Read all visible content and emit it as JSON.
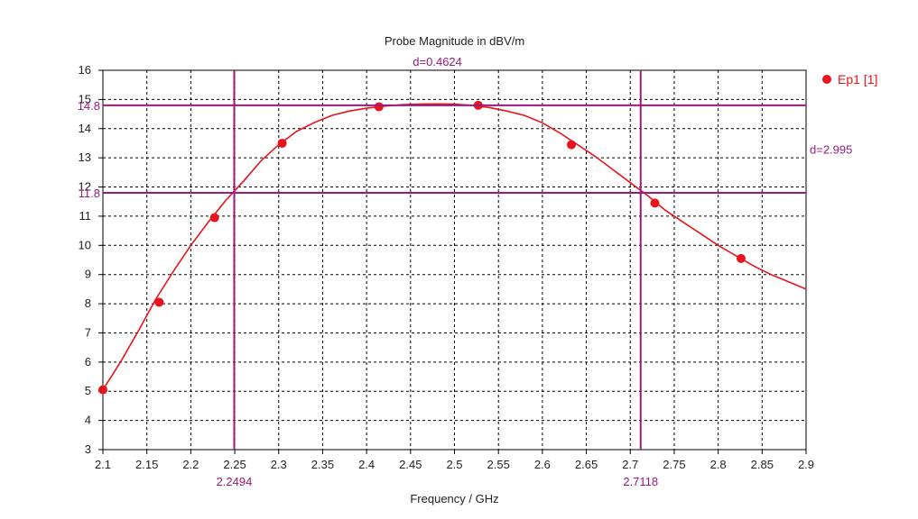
{
  "chart_data": {
    "type": "line",
    "title": "Probe Magnitude in dBV/m",
    "xlabel": "Frequency / GHz",
    "ylabel": "",
    "xlim": [
      2.1,
      2.9
    ],
    "ylim": [
      3,
      16
    ],
    "x_ticks": [
      "2.1",
      "2.15",
      "2.2",
      "2.25",
      "2.3",
      "2.35",
      "2.4",
      "2.45",
      "2.5",
      "2.55",
      "2.6",
      "2.65",
      "2.7",
      "2.75",
      "2.8",
      "2.85",
      "2.9"
    ],
    "y_ticks": [
      "3",
      "4",
      "5",
      "6",
      "7",
      "8",
      "9",
      "10",
      "11",
      "12",
      "13",
      "14",
      "15",
      "16"
    ],
    "grid": true,
    "legend_position": "top-right",
    "series": [
      {
        "name": "Ep1 [1]",
        "color": "#e8141b",
        "curve_x": [
          2.1,
          2.12,
          2.14,
          2.16,
          2.18,
          2.2,
          2.22,
          2.24,
          2.26,
          2.28,
          2.3,
          2.32,
          2.34,
          2.36,
          2.38,
          2.4,
          2.42,
          2.44,
          2.46,
          2.48,
          2.5,
          2.52,
          2.54,
          2.56,
          2.58,
          2.6,
          2.62,
          2.64,
          2.66,
          2.68,
          2.7,
          2.72,
          2.74,
          2.76,
          2.78,
          2.8,
          2.82,
          2.84,
          2.86,
          2.88,
          2.9
        ],
        "curve_y": [
          5.05,
          6.0,
          7.05,
          8.15,
          9.1,
          10.0,
          10.8,
          11.55,
          12.2,
          12.9,
          13.45,
          13.9,
          14.2,
          14.45,
          14.6,
          14.7,
          14.77,
          14.82,
          14.84,
          14.85,
          14.84,
          14.8,
          14.72,
          14.6,
          14.45,
          14.2,
          13.85,
          13.45,
          13.05,
          12.6,
          12.15,
          11.7,
          11.2,
          10.8,
          10.4,
          10.0,
          9.65,
          9.3,
          9.0,
          8.75,
          8.5
        ],
        "markers_x": [
          2.1,
          2.164,
          2.227,
          2.304,
          2.414,
          2.527,
          2.633,
          2.728,
          2.826
        ],
        "markers_y": [
          5.05,
          8.05,
          10.95,
          13.5,
          14.75,
          14.8,
          13.45,
          11.45,
          9.55
        ]
      }
    ],
    "markers": {
      "color": "#9b1a7c",
      "vertical": [
        {
          "x": 2.2494,
          "label": "2.2494"
        },
        {
          "x": 2.7118,
          "label": "2.7118"
        }
      ],
      "horizontal": [
        {
          "y": 14.8,
          "label": "14.8"
        },
        {
          "y": 11.8,
          "label": "11.8"
        }
      ],
      "dx_label": "d=0.4624",
      "dy_label": "d=2.995"
    }
  }
}
